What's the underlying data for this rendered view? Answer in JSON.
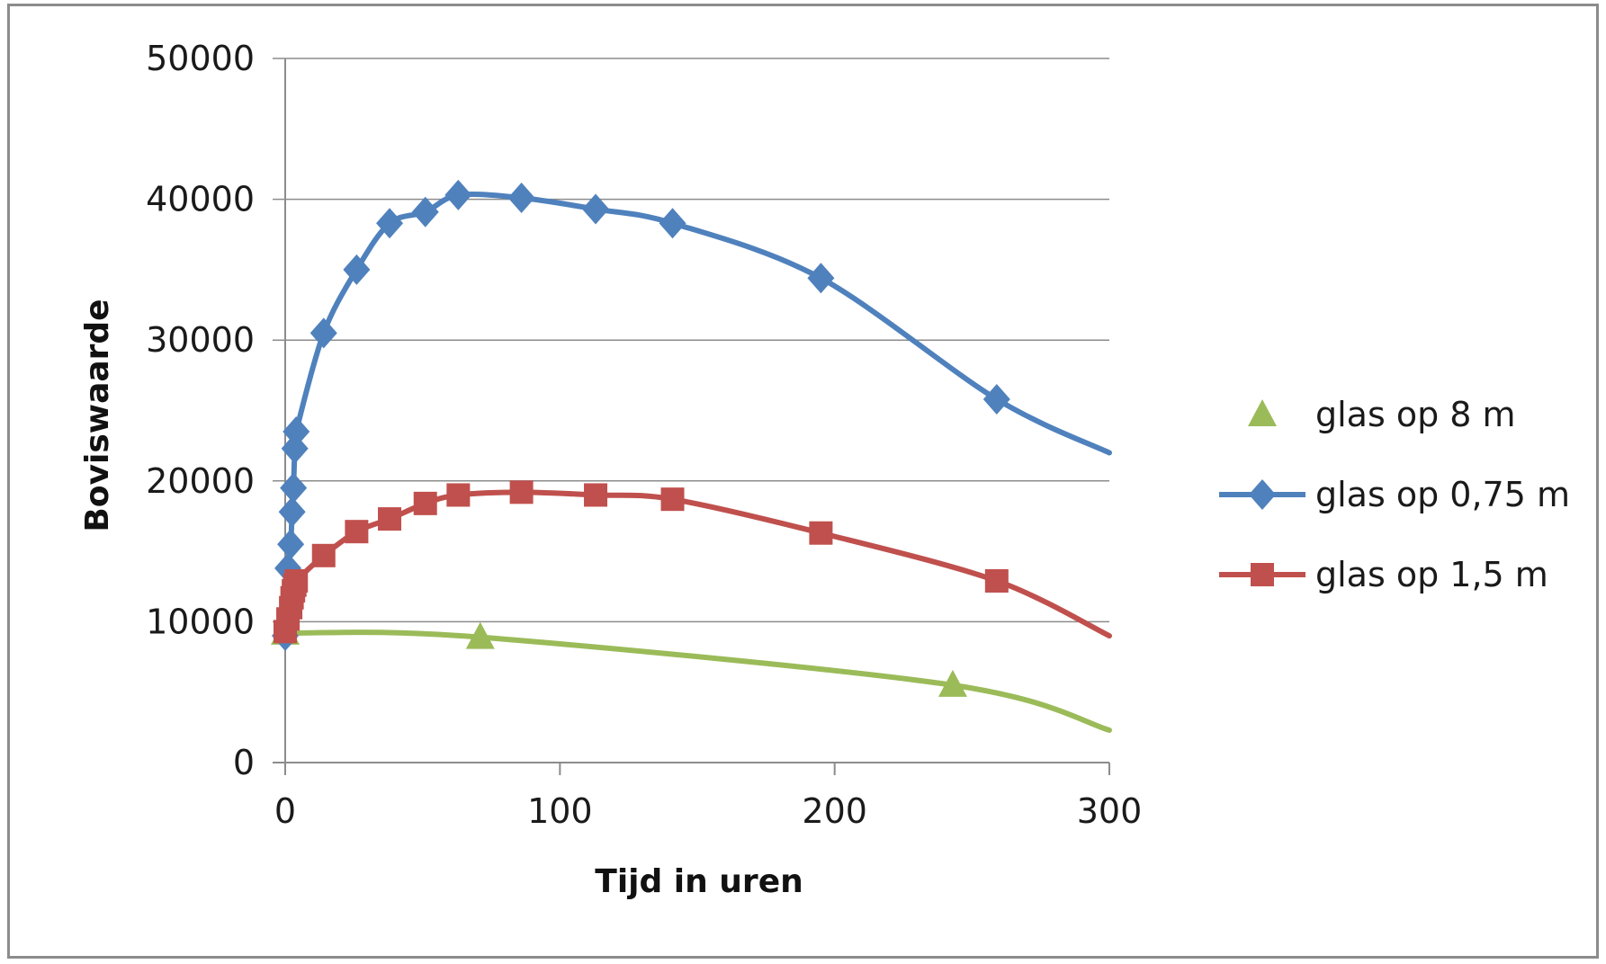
{
  "chart_data": {
    "type": "line",
    "title": "",
    "xlabel": "Tijd in uren",
    "ylabel": "Boviswaarde",
    "xlim": [
      0,
      300
    ],
    "ylim": [
      0,
      50000
    ],
    "xticks": [
      "0",
      "100",
      "200",
      "300"
    ],
    "yticks": [
      "0",
      "10000",
      "20000",
      "30000",
      "40000",
      "50000"
    ],
    "grid": "horizontal",
    "legend_position": "right",
    "series": [
      {
        "name": "glas op 8 m",
        "color": "#9bbb59",
        "marker": "triangle",
        "x": [
          0,
          71,
          243
        ],
        "y": [
          9200,
          8900,
          5500
        ],
        "curve_end": [
          300,
          2300
        ]
      },
      {
        "name": "glas op 0,75 m",
        "color": "#4f81bd",
        "marker": "diamond",
        "x": [
          0,
          1,
          2,
          2.5,
          3,
          3.5,
          4,
          14,
          26,
          38,
          51,
          63,
          86,
          113,
          141,
          195,
          259
        ],
        "y": [
          9000,
          13800,
          15500,
          17800,
          19500,
          22300,
          23500,
          30500,
          35000,
          38300,
          39100,
          40300,
          40100,
          39300,
          38300,
          34400,
          25800
        ],
        "curve_end": [
          300,
          22000
        ]
      },
      {
        "name": "glas op 1,5 m",
        "color": "#c0504d",
        "marker": "square",
        "x": [
          0,
          1,
          2,
          2.5,
          3,
          3.5,
          4,
          14,
          26,
          38,
          51,
          63,
          86,
          113,
          141,
          195,
          259
        ],
        "y": [
          9300,
          10200,
          11000,
          11700,
          12200,
          12600,
          12900,
          14700,
          16400,
          17300,
          18400,
          19000,
          19200,
          19000,
          18700,
          16300,
          12900
        ],
        "curve_end": [
          300,
          9000
        ]
      }
    ]
  }
}
